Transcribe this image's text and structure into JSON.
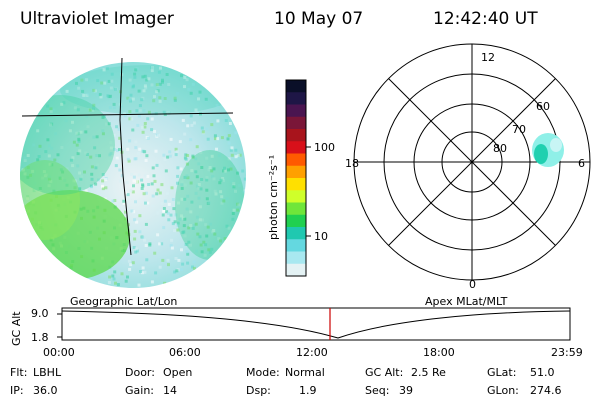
{
  "header": {
    "instrument": "Ultraviolet Imager",
    "date": "10 May 07",
    "time": "12:42:40 UT"
  },
  "colorbar": {
    "label": "photon cm⁻²s⁻¹",
    "ticks": [
      "100",
      "10"
    ],
    "colors": [
      "#0a0f28",
      "#1e1646",
      "#4a1550",
      "#7a1638",
      "#a8141c",
      "#d8101a",
      "#ff5a00",
      "#ffa000",
      "#ffe000",
      "#cfff2a",
      "#6fe63a",
      "#20d050",
      "#20c8b0",
      "#64d8e0",
      "#a8e8f0",
      "#e4f2f4"
    ]
  },
  "panels": {
    "left_label": "Geographic Lat/Lon",
    "right_label": "Apex  MLat/MLT"
  },
  "polar": {
    "mlt_labels": {
      "top": "12",
      "bottom": "0",
      "left": "18",
      "right": "6"
    },
    "lat_labels": [
      "60",
      "70",
      "80"
    ]
  },
  "timeline": {
    "ylabel": "GC Alt",
    "yticks": [
      "9.0",
      "1.8"
    ],
    "xticks": [
      "00:00",
      "06:00",
      "12:00",
      "18:00",
      "23:59"
    ],
    "marker_color": "#cc0000"
  },
  "status": {
    "row1": [
      {
        "key": "Flt:",
        "value": "LBHL"
      },
      {
        "key": "Door:",
        "value": "Open"
      },
      {
        "key": "Mode:",
        "value": "Normal"
      },
      {
        "key": "GC Alt:",
        "value": "2.5 Re"
      },
      {
        "key": "GLat:",
        "value": "51.0"
      }
    ],
    "row2": [
      {
        "key": "IP:",
        "value": "36.0"
      },
      {
        "key": "Gain:",
        "value": "14"
      },
      {
        "key": "Dsp:",
        "value": "1.9"
      },
      {
        "key": "Seq:",
        "value": "39"
      },
      {
        "key": "GLon:",
        "value": "274.6"
      }
    ]
  }
}
